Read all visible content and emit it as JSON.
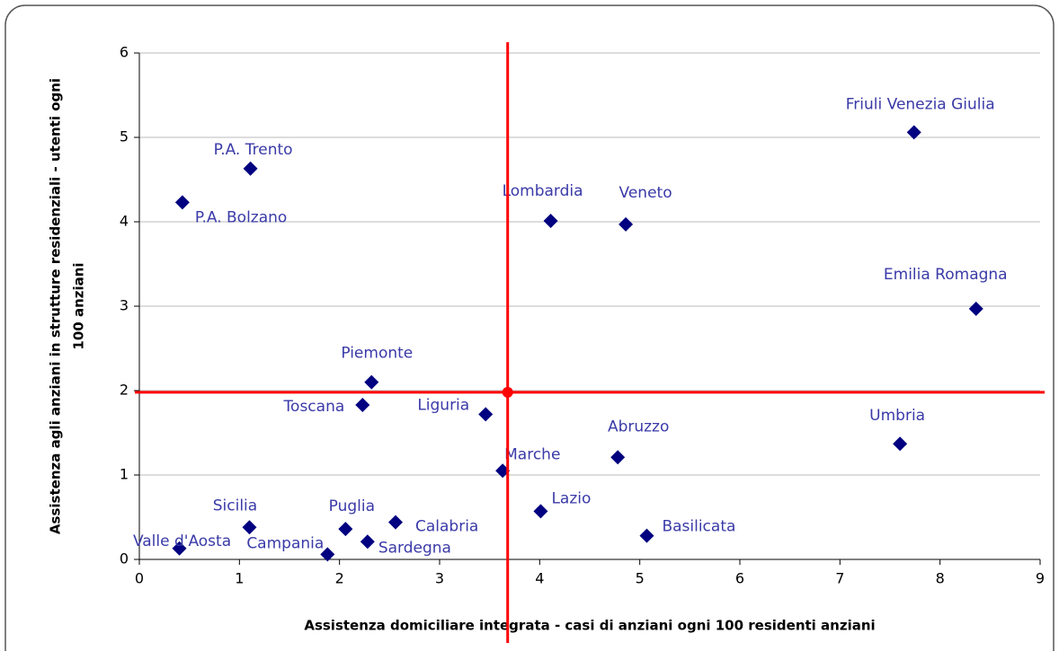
{
  "chart_data": {
    "type": "scatter",
    "x_label": "Assistenza domiciliare integrata - casi di anziani ogni 100 residenti anziani",
    "y_label": [
      "Assistenza agli anziani in strutture residenziali - utenti ogni",
      "100 anziani"
    ],
    "xlim": [
      0,
      9
    ],
    "xticks": [
      0,
      1,
      2,
      3,
      4,
      5,
      6,
      7,
      8,
      9
    ],
    "ylim": [
      0,
      6
    ],
    "yticks": [
      0,
      1,
      2,
      3,
      4,
      5,
      6
    ],
    "grid": true,
    "color": "#000080",
    "reference_color": "#ff0000",
    "reference_x": 3.68,
    "reference_y": 1.98,
    "labels": [
      "Valle d'Aosta",
      "P.A. Bolzano",
      "P.A. Trento",
      "Sicilia",
      "Campania",
      "Puglia",
      "Sardegna",
      "Calabria",
      "Toscana",
      "Piemonte",
      "Liguria",
      "Marche",
      "Lazio",
      "Lombardia",
      "Veneto",
      "Abruzzo",
      "Basilicata",
      "Umbria",
      "Friuli Venezia Giulia",
      "Emilia Romagna"
    ],
    "x": [
      0.4,
      0.43,
      1.11,
      1.1,
      1.88,
      2.06,
      2.28,
      2.56,
      2.23,
      2.32,
      3.46,
      3.63,
      4.01,
      4.11,
      4.86,
      4.78,
      5.07,
      7.6,
      7.74,
      8.36
    ],
    "y": [
      0.13,
      4.23,
      4.63,
      0.38,
      0.06,
      0.36,
      0.21,
      0.44,
      1.83,
      2.1,
      1.72,
      1.05,
      0.57,
      4.01,
      3.97,
      1.21,
      0.28,
      1.37,
      5.06,
      2.97
    ]
  }
}
